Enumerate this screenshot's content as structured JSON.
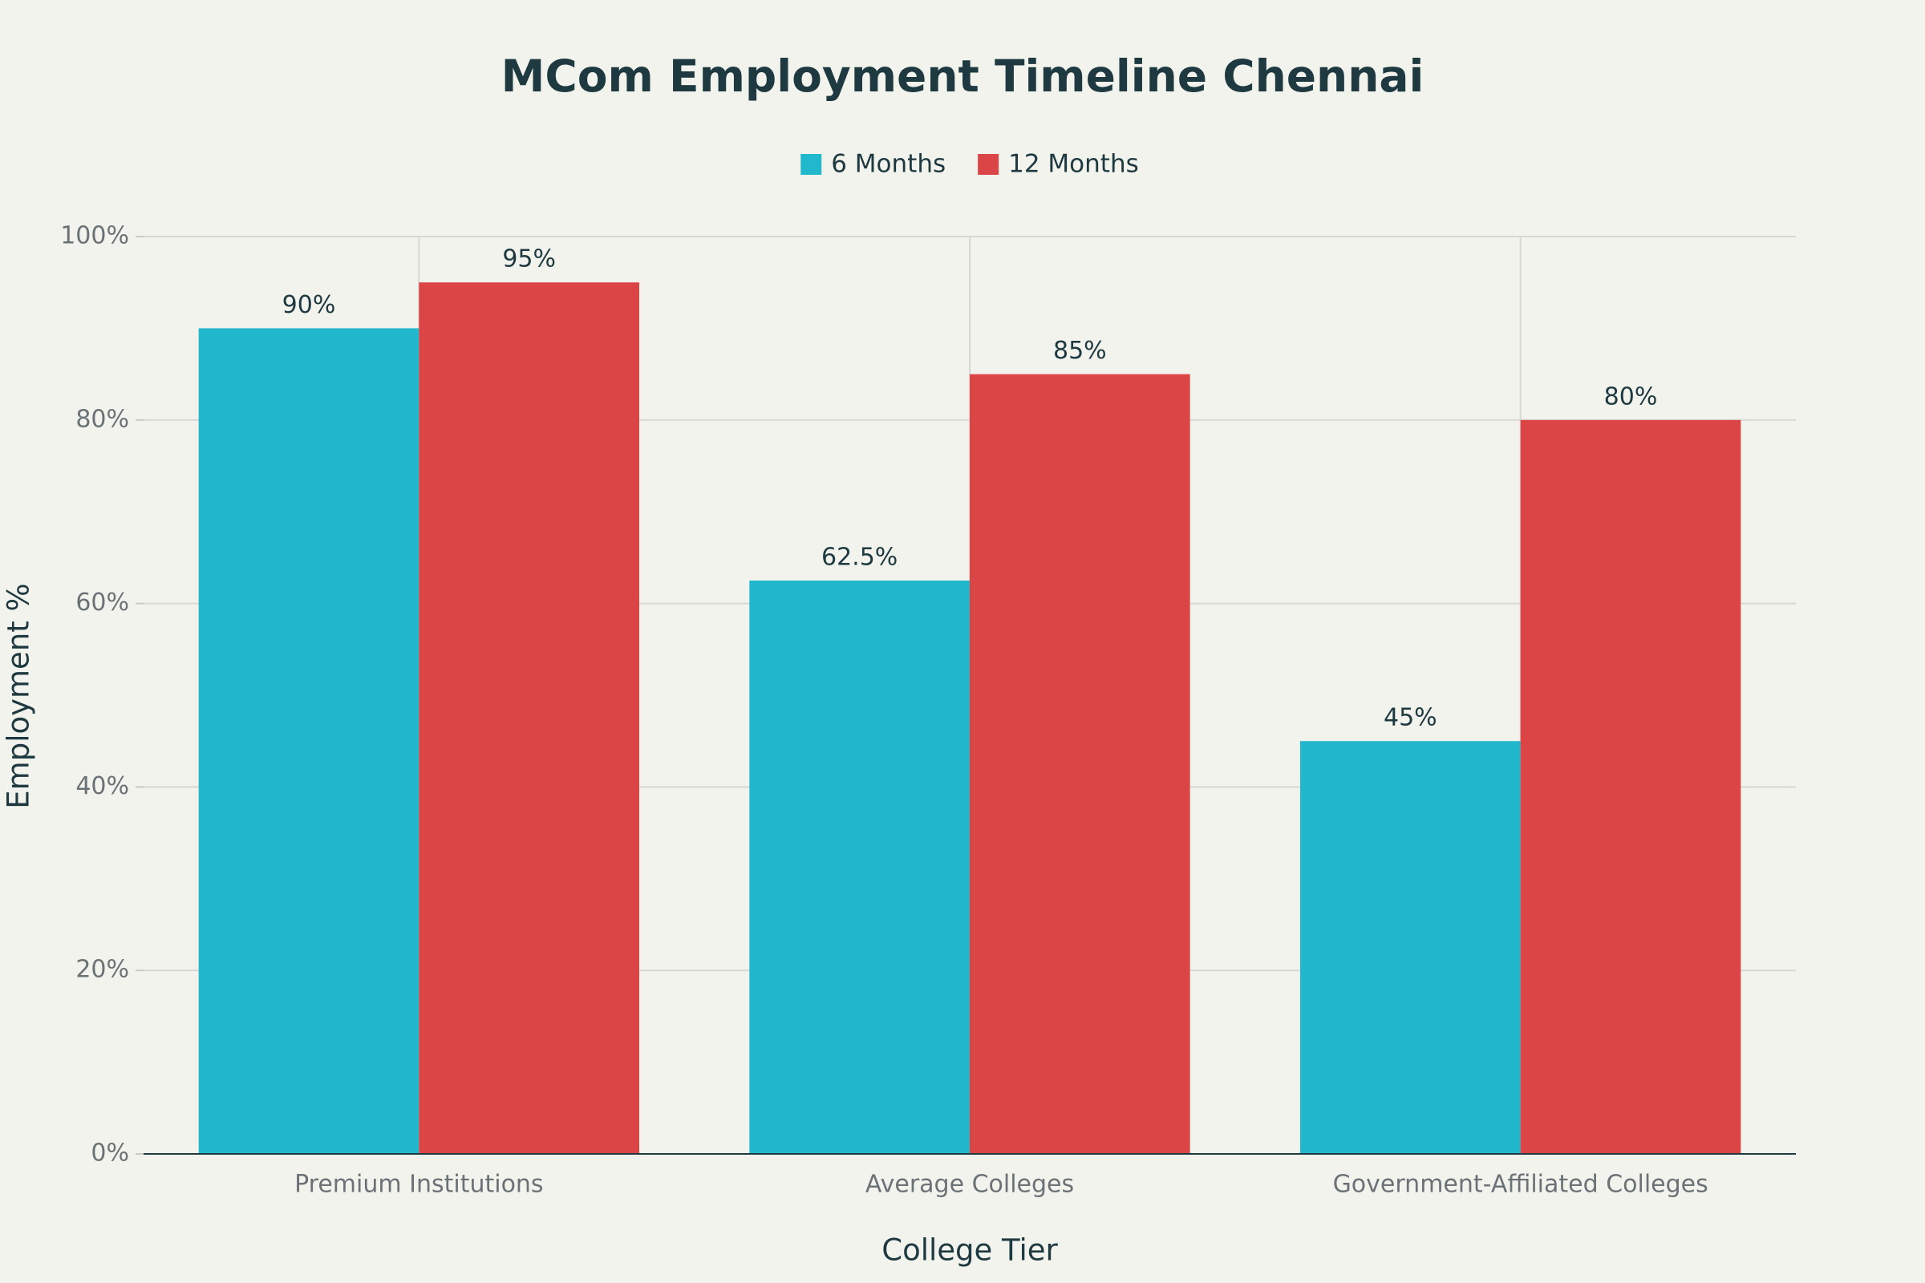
{
  "chart_data": {
    "type": "bar",
    "title": "MCom Employment Timeline Chennai",
    "x_label": "College Tier",
    "y_label": "Employment %",
    "categories": [
      "Premium Institutions",
      "Average Colleges",
      "Government-Affiliated Colleges"
    ],
    "series": [
      {
        "name": "6 Months",
        "color": "#21b7cc",
        "values": [
          90,
          62.5,
          45
        ],
        "value_labels": [
          "90%",
          "62.5%",
          "45%"
        ]
      },
      {
        "name": "12 Months",
        "color": "#db4546",
        "values": [
          95,
          85,
          80
        ],
        "value_labels": [
          "95%",
          "85%",
          "80%"
        ]
      }
    ],
    "ylim": [
      0,
      100
    ],
    "yticks": [
      {
        "value": 0,
        "label": "0%"
      },
      {
        "value": 20,
        "label": "20%"
      },
      {
        "value": 40,
        "label": "40%"
      },
      {
        "value": 60,
        "label": "60%"
      },
      {
        "value": 80,
        "label": "80%"
      },
      {
        "value": 100,
        "label": "100%"
      }
    ],
    "grid": true,
    "legend": "top"
  }
}
